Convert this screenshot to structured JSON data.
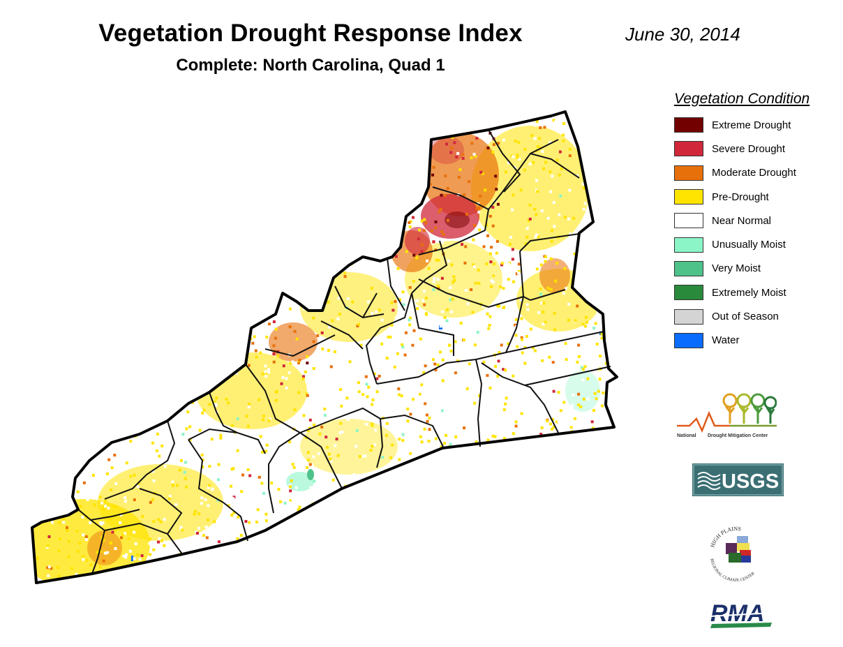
{
  "header": {
    "title": "Vegetation Drought Response Index",
    "subtitle": "Complete: North Carolina, Quad 1",
    "date": "June 30, 2014"
  },
  "legend": {
    "title": "Vegetation Condition",
    "items": [
      {
        "label": "Extreme Drought",
        "color": "#730000"
      },
      {
        "label": "Severe Drought",
        "color": "#d0273a"
      },
      {
        "label": "Moderate Drought",
        "color": "#e8700a"
      },
      {
        "label": "Pre-Drought",
        "color": "#ffe400"
      },
      {
        "label": "Near Normal",
        "color": "#ffffff"
      },
      {
        "label": "Unusually Moist",
        "color": "#8cf5c8"
      },
      {
        "label": "Very Moist",
        "color": "#4fc28a"
      },
      {
        "label": "Extremely Moist",
        "color": "#2a8a3c"
      },
      {
        "label": "Out of Season",
        "color": "#d4d4d4"
      },
      {
        "label": "Water",
        "color": "#0a6cff"
      }
    ]
  },
  "logos": {
    "ndmc": {
      "line1": "National",
      "line2": "Drought Mitigation Center"
    },
    "usgs": {
      "text": "USGS"
    },
    "hprcc": {
      "top": "HIGH PLAINS",
      "bottom": "REGIONAL CLIMATE CENTER"
    },
    "rma": {
      "text": "RMA"
    }
  }
}
